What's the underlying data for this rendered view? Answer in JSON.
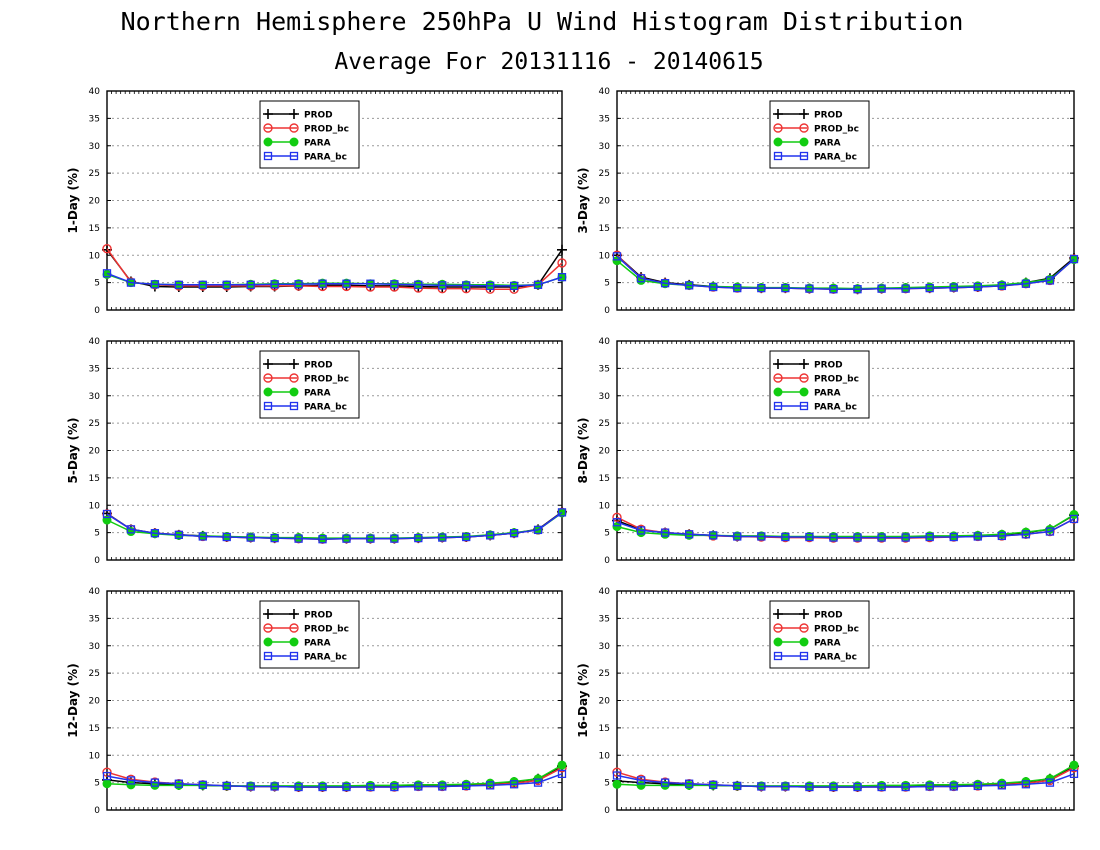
{
  "figure": {
    "title": "Northern Hemisphere 250hPa U Wind Histogram Distribution",
    "subtitle": "Average For 20131116 - 20140615"
  },
  "colors": {
    "PROD": "#000000",
    "PROD_bc": "#ee3333",
    "PARA": "#11cc11",
    "PARA_bc": "#2233ee"
  },
  "chart_data": [
    {
      "type": "line",
      "ylabel": "1-Day (%)",
      "ylim": [
        0,
        40
      ],
      "yticks": [
        "0",
        "5",
        "10",
        "15",
        "20",
        "25",
        "30",
        "35",
        "40"
      ],
      "grid": true,
      "legend": "top-left",
      "x": [
        1,
        2,
        3,
        4,
        5,
        6,
        7,
        8,
        9,
        10,
        11,
        12,
        13,
        14,
        15,
        16,
        17,
        18,
        19,
        20
      ],
      "series": [
        {
          "name": "PROD",
          "marker": "plus",
          "values": [
            11.0,
            5.2,
            4.3,
            4.2,
            4.2,
            4.2,
            4.3,
            4.3,
            4.4,
            4.5,
            4.5,
            4.4,
            4.4,
            4.3,
            4.2,
            4.2,
            4.2,
            4.2,
            4.6,
            11.0
          ]
        },
        {
          "name": "PROD_bc",
          "marker": "circle",
          "values": [
            11.2,
            5.1,
            4.6,
            4.4,
            4.4,
            4.4,
            4.4,
            4.4,
            4.4,
            4.3,
            4.3,
            4.2,
            4.2,
            4.0,
            3.9,
            3.9,
            3.8,
            3.8,
            4.6,
            8.6
          ]
        },
        {
          "name": "PARA",
          "marker": "dot",
          "values": [
            6.5,
            5.0,
            4.7,
            4.6,
            4.6,
            4.6,
            4.7,
            4.8,
            4.8,
            4.9,
            4.9,
            4.8,
            4.8,
            4.7,
            4.7,
            4.6,
            4.6,
            4.5,
            4.6,
            6.0
          ]
        },
        {
          "name": "PARA_bc",
          "marker": "square",
          "values": [
            6.7,
            5.0,
            4.7,
            4.6,
            4.6,
            4.6,
            4.6,
            4.7,
            4.7,
            4.8,
            4.8,
            4.8,
            4.7,
            4.6,
            4.5,
            4.5,
            4.4,
            4.4,
            4.6,
            6.0
          ]
        }
      ]
    },
    {
      "type": "line",
      "ylabel": "3-Day (%)",
      "ylim": [
        0,
        40
      ],
      "yticks": [
        "0",
        "5",
        "10",
        "15",
        "20",
        "25",
        "30",
        "35",
        "40"
      ],
      "grid": true,
      "legend": "top-left",
      "x": [
        1,
        2,
        3,
        4,
        5,
        6,
        7,
        8,
        9,
        10,
        11,
        12,
        13,
        14,
        15,
        16,
        17,
        18,
        19,
        20
      ],
      "series": [
        {
          "name": "PROD",
          "marker": "plus",
          "values": [
            10.0,
            6.0,
            5.0,
            4.6,
            4.3,
            4.1,
            4.0,
            4.0,
            3.9,
            3.9,
            3.8,
            3.9,
            4.0,
            4.0,
            4.1,
            4.2,
            4.5,
            5.0,
            5.8,
            9.5
          ]
        },
        {
          "name": "PROD_bc",
          "marker": "circle",
          "values": [
            10.0,
            5.8,
            4.9,
            4.5,
            4.2,
            4.0,
            4.0,
            4.0,
            3.9,
            3.8,
            3.8,
            3.9,
            3.9,
            4.0,
            4.1,
            4.2,
            4.4,
            4.8,
            5.4,
            9.3
          ]
        },
        {
          "name": "PARA",
          "marker": "dot",
          "values": [
            9.0,
            5.4,
            4.8,
            4.5,
            4.3,
            4.2,
            4.1,
            4.1,
            4.0,
            4.0,
            3.9,
            4.0,
            4.1,
            4.2,
            4.3,
            4.4,
            4.6,
            5.0,
            5.6,
            9.2
          ]
        },
        {
          "name": "PARA_bc",
          "marker": "square",
          "values": [
            9.8,
            5.8,
            4.9,
            4.5,
            4.2,
            4.0,
            4.0,
            4.0,
            3.9,
            3.8,
            3.8,
            3.9,
            3.9,
            4.0,
            4.1,
            4.2,
            4.4,
            4.8,
            5.4,
            9.3
          ]
        }
      ]
    },
    {
      "type": "line",
      "ylabel": "5-Day (%)",
      "ylim": [
        0,
        40
      ],
      "yticks": [
        "0",
        "5",
        "10",
        "15",
        "20",
        "25",
        "30",
        "35",
        "40"
      ],
      "grid": true,
      "legend": "top-left",
      "x": [
        1,
        2,
        3,
        4,
        5,
        6,
        7,
        8,
        9,
        10,
        11,
        12,
        13,
        14,
        15,
        16,
        17,
        18,
        19,
        20
      ],
      "series": [
        {
          "name": "PROD",
          "marker": "plus",
          "values": [
            8.5,
            5.6,
            4.9,
            4.6,
            4.4,
            4.2,
            4.1,
            4.0,
            4.0,
            3.9,
            3.9,
            3.9,
            3.9,
            4.0,
            4.1,
            4.2,
            4.5,
            4.9,
            5.6,
            8.8
          ]
        },
        {
          "name": "PROD_bc",
          "marker": "circle",
          "values": [
            8.4,
            5.6,
            4.9,
            4.6,
            4.3,
            4.2,
            4.1,
            4.0,
            3.9,
            3.8,
            3.9,
            3.9,
            3.9,
            4.0,
            4.1,
            4.2,
            4.5,
            4.9,
            5.5,
            8.7
          ]
        },
        {
          "name": "PARA",
          "marker": "dot",
          "values": [
            7.3,
            5.2,
            4.8,
            4.5,
            4.4,
            4.3,
            4.2,
            4.1,
            4.1,
            4.0,
            4.0,
            4.0,
            4.0,
            4.1,
            4.2,
            4.3,
            4.6,
            5.0,
            5.5,
            8.6
          ]
        },
        {
          "name": "PARA_bc",
          "marker": "square",
          "values": [
            8.4,
            5.6,
            4.9,
            4.6,
            4.3,
            4.2,
            4.1,
            4.0,
            3.9,
            3.8,
            3.9,
            3.9,
            3.9,
            4.0,
            4.1,
            4.2,
            4.5,
            4.9,
            5.5,
            8.7
          ]
        }
      ]
    },
    {
      "type": "line",
      "ylabel": "8-Day (%)",
      "ylim": [
        0,
        40
      ],
      "yticks": [
        "0",
        "5",
        "10",
        "15",
        "20",
        "25",
        "30",
        "35",
        "40"
      ],
      "grid": true,
      "legend": "top-left",
      "x": [
        1,
        2,
        3,
        4,
        5,
        6,
        7,
        8,
        9,
        10,
        11,
        12,
        13,
        14,
        15,
        16,
        17,
        18,
        19,
        20
      ],
      "series": [
        {
          "name": "PROD",
          "marker": "plus",
          "values": [
            7.2,
            5.5,
            5.0,
            4.7,
            4.5,
            4.3,
            4.3,
            4.2,
            4.2,
            4.1,
            4.1,
            4.1,
            4.1,
            4.2,
            4.3,
            4.4,
            4.6,
            5.0,
            5.6,
            8.2
          ]
        },
        {
          "name": "PROD_bc",
          "marker": "circle",
          "values": [
            7.8,
            5.6,
            5.0,
            4.7,
            4.4,
            4.3,
            4.2,
            4.1,
            4.1,
            4.0,
            4.0,
            4.0,
            4.0,
            4.1,
            4.2,
            4.3,
            4.4,
            4.7,
            5.2,
            7.5
          ]
        },
        {
          "name": "PARA",
          "marker": "dot",
          "values": [
            6.1,
            5.0,
            4.7,
            4.5,
            4.5,
            4.4,
            4.4,
            4.3,
            4.3,
            4.3,
            4.3,
            4.3,
            4.3,
            4.4,
            4.4,
            4.5,
            4.7,
            5.1,
            5.6,
            8.3
          ]
        },
        {
          "name": "PARA_bc",
          "marker": "square",
          "values": [
            6.9,
            5.4,
            5.0,
            4.7,
            4.5,
            4.3,
            4.3,
            4.2,
            4.2,
            4.1,
            4.1,
            4.1,
            4.1,
            4.2,
            4.2,
            4.3,
            4.4,
            4.7,
            5.2,
            7.5
          ]
        }
      ]
    },
    {
      "type": "line",
      "ylabel": "12-Day (%)",
      "ylim": [
        0,
        40
      ],
      "yticks": [
        "0",
        "5",
        "10",
        "15",
        "20",
        "25",
        "30",
        "35",
        "40"
      ],
      "grid": true,
      "legend": "top-left",
      "x": [
        1,
        2,
        3,
        4,
        5,
        6,
        7,
        8,
        9,
        10,
        11,
        12,
        13,
        14,
        15,
        16,
        17,
        18,
        19,
        20
      ],
      "series": [
        {
          "name": "PROD",
          "marker": "plus",
          "values": [
            5.5,
            5.0,
            4.8,
            4.6,
            4.5,
            4.4,
            4.3,
            4.3,
            4.2,
            4.2,
            4.2,
            4.3,
            4.3,
            4.4,
            4.4,
            4.5,
            4.7,
            5.1,
            5.7,
            8.0
          ]
        },
        {
          "name": "PROD_bc",
          "marker": "circle",
          "values": [
            6.9,
            5.6,
            5.1,
            4.8,
            4.6,
            4.4,
            4.3,
            4.3,
            4.2,
            4.2,
            4.2,
            4.2,
            4.2,
            4.3,
            4.3,
            4.4,
            4.6,
            4.9,
            5.4,
            7.7
          ]
        },
        {
          "name": "PARA",
          "marker": "dot",
          "values": [
            4.8,
            4.6,
            4.5,
            4.5,
            4.5,
            4.4,
            4.4,
            4.4,
            4.4,
            4.4,
            4.4,
            4.5,
            4.5,
            4.6,
            4.6,
            4.7,
            4.9,
            5.2,
            5.7,
            8.2
          ]
        },
        {
          "name": "PARA_bc",
          "marker": "square",
          "values": [
            6.2,
            5.4,
            5.0,
            4.8,
            4.6,
            4.4,
            4.3,
            4.3,
            4.2,
            4.2,
            4.2,
            4.2,
            4.2,
            4.3,
            4.3,
            4.4,
            4.5,
            4.7,
            5.0,
            6.6
          ]
        }
      ]
    },
    {
      "type": "line",
      "ylabel": "16-Day (%)",
      "ylim": [
        0,
        40
      ],
      "yticks": [
        "0",
        "5",
        "10",
        "15",
        "20",
        "25",
        "30",
        "35",
        "40"
      ],
      "grid": true,
      "legend": "top-left",
      "x": [
        1,
        2,
        3,
        4,
        5,
        6,
        7,
        8,
        9,
        10,
        11,
        12,
        13,
        14,
        15,
        16,
        17,
        18,
        19,
        20
      ],
      "series": [
        {
          "name": "PROD",
          "marker": "plus",
          "values": [
            5.3,
            5.0,
            4.8,
            4.6,
            4.5,
            4.4,
            4.3,
            4.3,
            4.2,
            4.2,
            4.2,
            4.3,
            4.3,
            4.4,
            4.4,
            4.5,
            4.7,
            5.1,
            5.7,
            8.0
          ]
        },
        {
          "name": "PROD_bc",
          "marker": "circle",
          "values": [
            6.9,
            5.6,
            5.1,
            4.8,
            4.6,
            4.4,
            4.3,
            4.3,
            4.2,
            4.2,
            4.2,
            4.2,
            4.2,
            4.3,
            4.3,
            4.4,
            4.6,
            4.9,
            5.4,
            7.7
          ]
        },
        {
          "name": "PARA",
          "marker": "dot",
          "values": [
            4.7,
            4.5,
            4.5,
            4.5,
            4.5,
            4.4,
            4.4,
            4.4,
            4.4,
            4.4,
            4.4,
            4.5,
            4.5,
            4.6,
            4.6,
            4.7,
            4.9,
            5.2,
            5.7,
            8.2
          ]
        },
        {
          "name": "PARA_bc",
          "marker": "square",
          "values": [
            6.3,
            5.4,
            5.0,
            4.8,
            4.6,
            4.4,
            4.3,
            4.3,
            4.2,
            4.2,
            4.2,
            4.2,
            4.2,
            4.3,
            4.3,
            4.4,
            4.5,
            4.7,
            5.0,
            6.6
          ]
        }
      ]
    }
  ]
}
